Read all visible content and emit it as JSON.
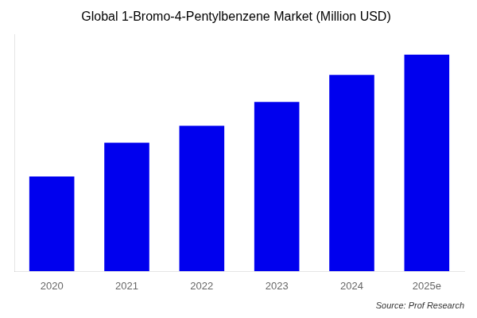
{
  "chart_data": {
    "type": "bar",
    "title": "Global 1-Bromo-4-Pentylbenzene Market (Million USD)",
    "categories": [
      "2020",
      "2021",
      "2022",
      "2023",
      "2024",
      "2025e"
    ],
    "values": [
      28,
      38,
      43,
      50,
      58,
      64
    ],
    "color": "#0000EE",
    "ylim": [
      0,
      70
    ],
    "grid": false,
    "tick_labels": "x",
    "annotation": "Source: Prof Research"
  }
}
